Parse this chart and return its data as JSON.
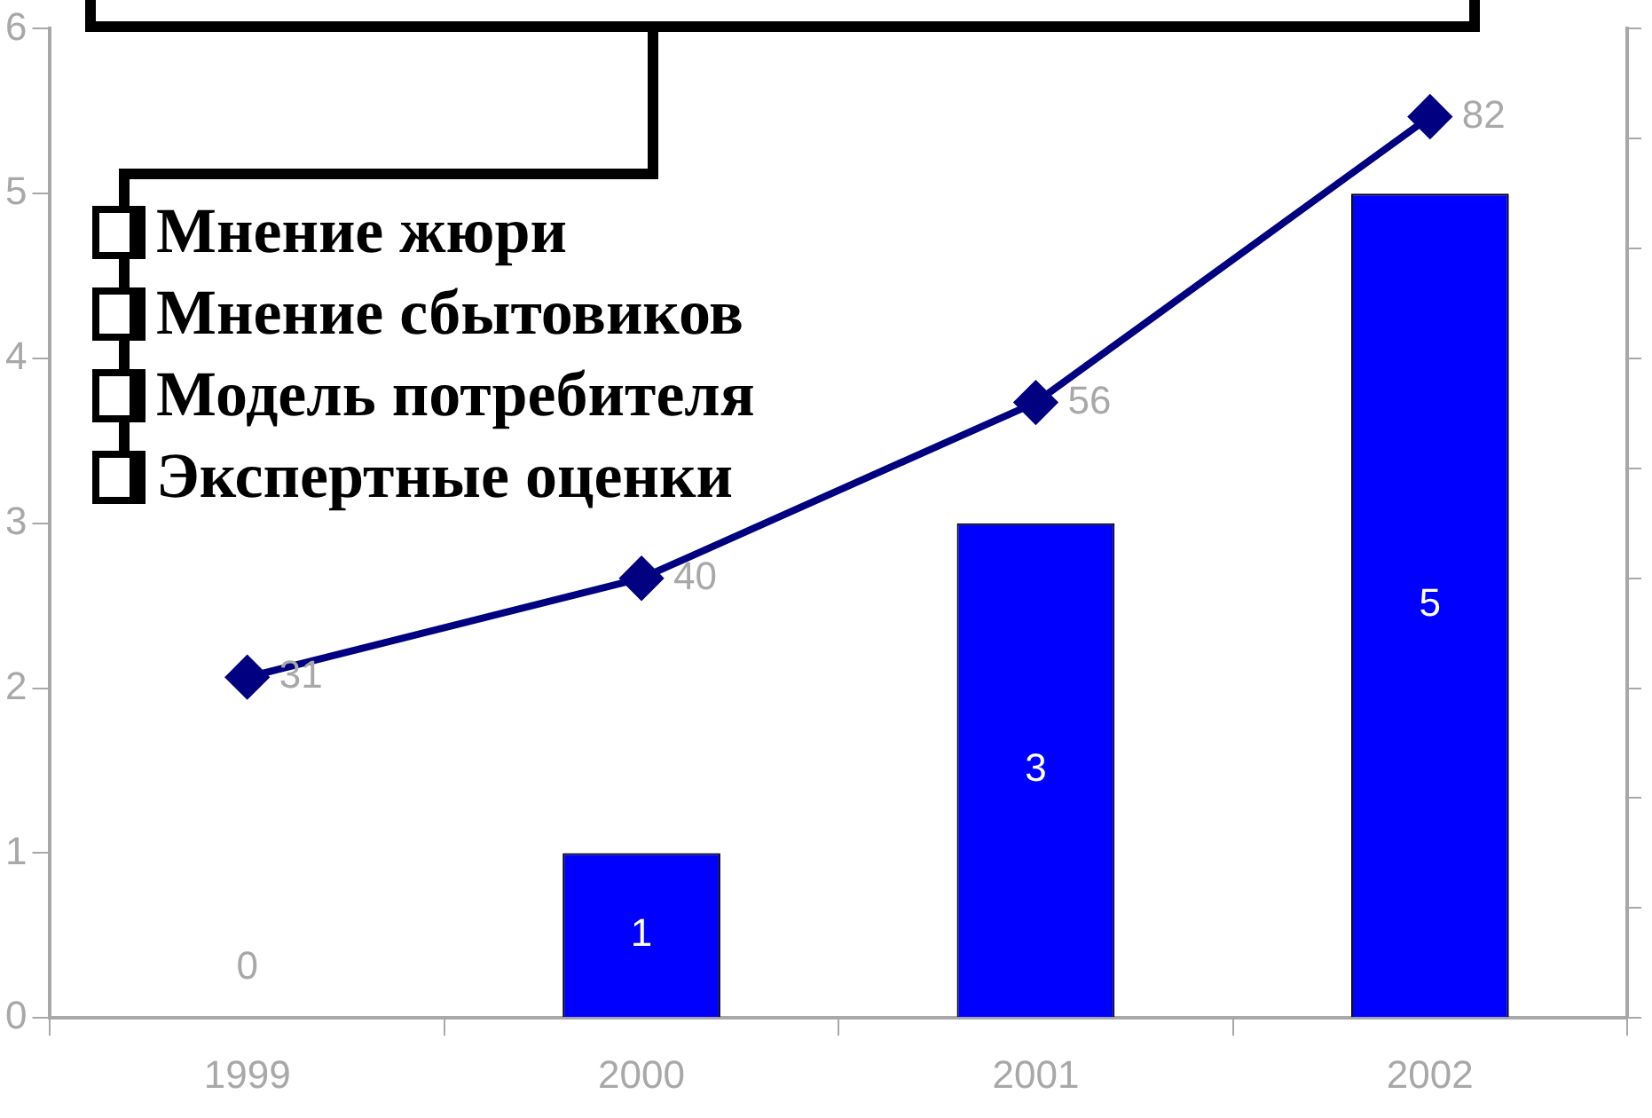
{
  "chart_data": {
    "type": "bar",
    "categories": [
      "1999",
      "2000",
      "2001",
      "2002"
    ],
    "series": [
      {
        "color": "#0000ff",
        "values": [
          0,
          1,
          3,
          5
        ]
      },
      {
        "type": "line",
        "axis": "y2",
        "color": "#000080",
        "values": [
          31,
          40,
          56,
          82
        ]
      }
    ],
    "ylim": [
      0,
      6
    ],
    "yticks": [
      0,
      1,
      2,
      3,
      4,
      5,
      6
    ],
    "data_labels": true,
    "marker": "diamond",
    "annotations": [
      "Мнение жюри",
      "Мнение сбытовиков",
      "Модель потребителя",
      "Экспертные оценки"
    ]
  }
}
